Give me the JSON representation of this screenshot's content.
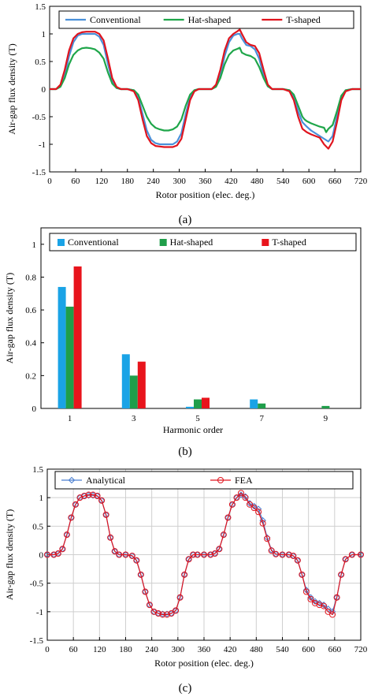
{
  "captions": [
    "(a)",
    "(b)",
    "(c)"
  ],
  "chart_data": [
    {
      "type": "line",
      "xlabel": "Rotor position (elec. deg.)",
      "ylabel": "Air-gap flux density (T)",
      "xlim": [
        0,
        720
      ],
      "ylim": [
        -1.5,
        1.5
      ],
      "xticks": [
        0,
        60,
        120,
        180,
        240,
        300,
        360,
        420,
        480,
        540,
        600,
        660,
        720
      ],
      "yticks": [
        -1.5,
        -1,
        -0.5,
        0,
        0.5,
        1,
        1.5
      ],
      "grid": false,
      "legend_position": "top",
      "series": [
        {
          "name": "Conventional",
          "color": "#4a90d9",
          "x": [
            0,
            15,
            25,
            35,
            45,
            55,
            65,
            75,
            85,
            95,
            105,
            115,
            125,
            135,
            145,
            155,
            165,
            180,
            195,
            205,
            215,
            225,
            235,
            245,
            255,
            265,
            275,
            285,
            295,
            305,
            315,
            325,
            335,
            345,
            360,
            375,
            385,
            395,
            405,
            415,
            425,
            435,
            440,
            445,
            455,
            465,
            475,
            485,
            495,
            505,
            515,
            525,
            540,
            555,
            565,
            575,
            585,
            595,
            605,
            615,
            625,
            635,
            645,
            655,
            665,
            675,
            685,
            700,
            720
          ],
          "y": [
            0,
            0,
            0.05,
            0.25,
            0.6,
            0.85,
            0.97,
            1.0,
            1.0,
            1.0,
            1.0,
            0.95,
            0.8,
            0.45,
            0.15,
            0.02,
            0,
            0,
            -0.02,
            -0.15,
            -0.45,
            -0.75,
            -0.92,
            -0.98,
            -1.0,
            -1.0,
            -1.0,
            -1.0,
            -0.95,
            -0.8,
            -0.45,
            -0.15,
            -0.02,
            0,
            0,
            0,
            0.05,
            0.25,
            0.6,
            0.85,
            0.97,
            1.0,
            1.0,
            0.92,
            0.8,
            0.78,
            0.72,
            0.55,
            0.25,
            0.05,
            0,
            0,
            0,
            -0.02,
            -0.15,
            -0.4,
            -0.6,
            -0.68,
            -0.75,
            -0.8,
            -0.85,
            -0.9,
            -0.95,
            -0.85,
            -0.5,
            -0.15,
            -0.02,
            0,
            0
          ]
        },
        {
          "name": "Hat-shaped",
          "color": "#1fa64a",
          "x": [
            0,
            15,
            25,
            35,
            45,
            55,
            65,
            75,
            85,
            95,
            105,
            115,
            125,
            135,
            145,
            155,
            165,
            180,
            195,
            205,
            215,
            225,
            235,
            245,
            255,
            265,
            275,
            285,
            295,
            305,
            315,
            325,
            335,
            345,
            360,
            375,
            385,
            395,
            405,
            415,
            425,
            435,
            440,
            445,
            455,
            465,
            475,
            485,
            495,
            505,
            515,
            525,
            540,
            555,
            565,
            575,
            585,
            590,
            595,
            605,
            615,
            625,
            635,
            640,
            645,
            655,
            665,
            675,
            685,
            700,
            720
          ],
          "y": [
            0,
            0,
            0.04,
            0.2,
            0.45,
            0.62,
            0.7,
            0.74,
            0.75,
            0.74,
            0.72,
            0.66,
            0.55,
            0.3,
            0.1,
            0.02,
            0,
            0,
            -0.02,
            -0.1,
            -0.3,
            -0.5,
            -0.63,
            -0.7,
            -0.73,
            -0.75,
            -0.75,
            -0.73,
            -0.68,
            -0.55,
            -0.3,
            -0.1,
            -0.02,
            0,
            0,
            0,
            0.04,
            0.2,
            0.45,
            0.62,
            0.7,
            0.73,
            0.75,
            0.66,
            0.62,
            0.6,
            0.55,
            0.4,
            0.2,
            0.05,
            0,
            0,
            0,
            -0.02,
            -0.1,
            -0.3,
            -0.5,
            -0.55,
            -0.58,
            -0.62,
            -0.65,
            -0.68,
            -0.7,
            -0.78,
            -0.72,
            -0.65,
            -0.4,
            -0.12,
            -0.02,
            0,
            0
          ]
        },
        {
          "name": "T-shaped",
          "color": "#e0141e",
          "x": [
            0,
            15,
            25,
            35,
            45,
            55,
            65,
            75,
            85,
            95,
            105,
            115,
            125,
            135,
            145,
            155,
            165,
            180,
            195,
            205,
            215,
            225,
            235,
            245,
            255,
            265,
            275,
            285,
            295,
            305,
            315,
            325,
            335,
            345,
            360,
            375,
            385,
            395,
            405,
            415,
            425,
            435,
            440,
            445,
            455,
            465,
            475,
            485,
            495,
            505,
            515,
            525,
            540,
            555,
            565,
            575,
            585,
            595,
            605,
            615,
            625,
            635,
            645,
            655,
            665,
            675,
            685,
            700,
            720
          ],
          "y": [
            0,
            0,
            0.08,
            0.35,
            0.7,
            0.92,
            1.0,
            1.03,
            1.04,
            1.04,
            1.04,
            1.0,
            0.88,
            0.55,
            0.2,
            0.04,
            0,
            0,
            -0.04,
            -0.2,
            -0.55,
            -0.85,
            -0.98,
            -1.03,
            -1.04,
            -1.05,
            -1.05,
            -1.05,
            -1.02,
            -0.9,
            -0.55,
            -0.2,
            -0.04,
            0,
            0,
            0,
            0.08,
            0.35,
            0.7,
            0.92,
            1.0,
            1.05,
            1.08,
            1.0,
            0.85,
            0.8,
            0.78,
            0.65,
            0.35,
            0.08,
            0,
            0,
            0,
            -0.04,
            -0.2,
            -0.5,
            -0.72,
            -0.78,
            -0.82,
            -0.85,
            -0.88,
            -1.0,
            -1.08,
            -0.95,
            -0.6,
            -0.2,
            -0.04,
            0,
            0
          ]
        }
      ]
    },
    {
      "type": "bar",
      "xlabel": "Harmonic order",
      "ylabel": "Air-gap flux density (T)",
      "categories": [
        "1",
        "3",
        "5",
        "7",
        "9"
      ],
      "ylim": [
        0,
        1.1
      ],
      "yticks": [
        0,
        0.2,
        0.4,
        0.6,
        0.8,
        1
      ],
      "grid": false,
      "legend_position": "top",
      "series": [
        {
          "name": "Conventional",
          "color": "#1aa3e6",
          "values": [
            0.74,
            0.33,
            0.01,
            0.055,
            0.0
          ]
        },
        {
          "name": "Hat-shaped",
          "color": "#1f9e4a",
          "values": [
            0.62,
            0.2,
            0.055,
            0.03,
            0.015
          ]
        },
        {
          "name": "T-shaped",
          "color": "#e8141c",
          "values": [
            0.865,
            0.285,
            0.065,
            0.0,
            0.0
          ]
        }
      ]
    },
    {
      "type": "line",
      "xlabel": "Rotor position (elec. deg.)",
      "ylabel": "Air-gap flux density (T)",
      "xlim": [
        0,
        720
      ],
      "ylim": [
        -1.5,
        1.5
      ],
      "xticks": [
        0,
        60,
        120,
        180,
        240,
        300,
        360,
        420,
        480,
        540,
        600,
        660,
        720
      ],
      "yticks": [
        -1.5,
        -1,
        -0.5,
        0,
        0.5,
        1,
        1.5
      ],
      "grid": true,
      "legend_position": "top",
      "series": [
        {
          "name": "Analytical",
          "color": "#4a7fd0",
          "marker": "diamond",
          "x": [
            0,
            15,
            25,
            35,
            45,
            55,
            65,
            75,
            85,
            95,
            105,
            115,
            125,
            135,
            145,
            155,
            165,
            180,
            195,
            205,
            215,
            225,
            235,
            245,
            255,
            265,
            275,
            285,
            295,
            305,
            315,
            325,
            335,
            345,
            360,
            375,
            385,
            395,
            405,
            415,
            425,
            435,
            445,
            455,
            465,
            475,
            485,
            495,
            505,
            515,
            525,
            540,
            555,
            565,
            575,
            585,
            595,
            605,
            615,
            625,
            635,
            645,
            655,
            665,
            675,
            685,
            700,
            720
          ],
          "y": [
            0,
            0,
            0.02,
            0.1,
            0.35,
            0.65,
            0.88,
            1.0,
            1.03,
            1.04,
            1.04,
            1.03,
            0.95,
            0.7,
            0.3,
            0.06,
            0,
            0,
            -0.02,
            -0.1,
            -0.35,
            -0.65,
            -0.88,
            -1.0,
            -1.03,
            -1.04,
            -1.04,
            -1.03,
            -0.98,
            -0.75,
            -0.35,
            -0.08,
            0,
            0,
            0,
            0,
            0.02,
            0.1,
            0.35,
            0.65,
            0.88,
            1.0,
            1.05,
            1.02,
            0.9,
            0.85,
            0.8,
            0.6,
            0.3,
            0.08,
            0.01,
            0,
            0,
            -0.02,
            -0.1,
            -0.35,
            -0.62,
            -0.75,
            -0.82,
            -0.85,
            -0.88,
            -0.95,
            -1.0,
            -0.75,
            -0.35,
            -0.08,
            0,
            0
          ]
        },
        {
          "name": "FEA",
          "color": "#e0141e",
          "marker": "circle",
          "x": [
            0,
            15,
            25,
            35,
            45,
            55,
            65,
            75,
            85,
            95,
            105,
            115,
            125,
            135,
            145,
            155,
            165,
            180,
            195,
            205,
            215,
            225,
            235,
            245,
            255,
            265,
            275,
            285,
            295,
            305,
            315,
            325,
            335,
            345,
            360,
            375,
            385,
            395,
            405,
            415,
            425,
            435,
            445,
            455,
            465,
            475,
            485,
            495,
            505,
            515,
            525,
            540,
            555,
            565,
            575,
            585,
            595,
            605,
            615,
            625,
            635,
            645,
            655,
            665,
            675,
            685,
            700,
            720
          ],
          "y": [
            0,
            0,
            0.02,
            0.1,
            0.35,
            0.65,
            0.88,
            1.0,
            1.03,
            1.05,
            1.05,
            1.03,
            0.95,
            0.7,
            0.3,
            0.06,
            0,
            0,
            -0.02,
            -0.1,
            -0.35,
            -0.65,
            -0.88,
            -1.0,
            -1.03,
            -1.05,
            -1.05,
            -1.03,
            -0.98,
            -0.75,
            -0.35,
            -0.08,
            0,
            0,
            0,
            0,
            0.02,
            0.1,
            0.35,
            0.65,
            0.88,
            1.0,
            1.08,
            1.0,
            0.88,
            0.82,
            0.75,
            0.55,
            0.28,
            0.07,
            0.01,
            0,
            0,
            -0.02,
            -0.1,
            -0.35,
            -0.65,
            -0.78,
            -0.85,
            -0.88,
            -0.9,
            -1.0,
            -1.05,
            -0.75,
            -0.35,
            -0.08,
            0,
            0
          ]
        }
      ]
    }
  ]
}
